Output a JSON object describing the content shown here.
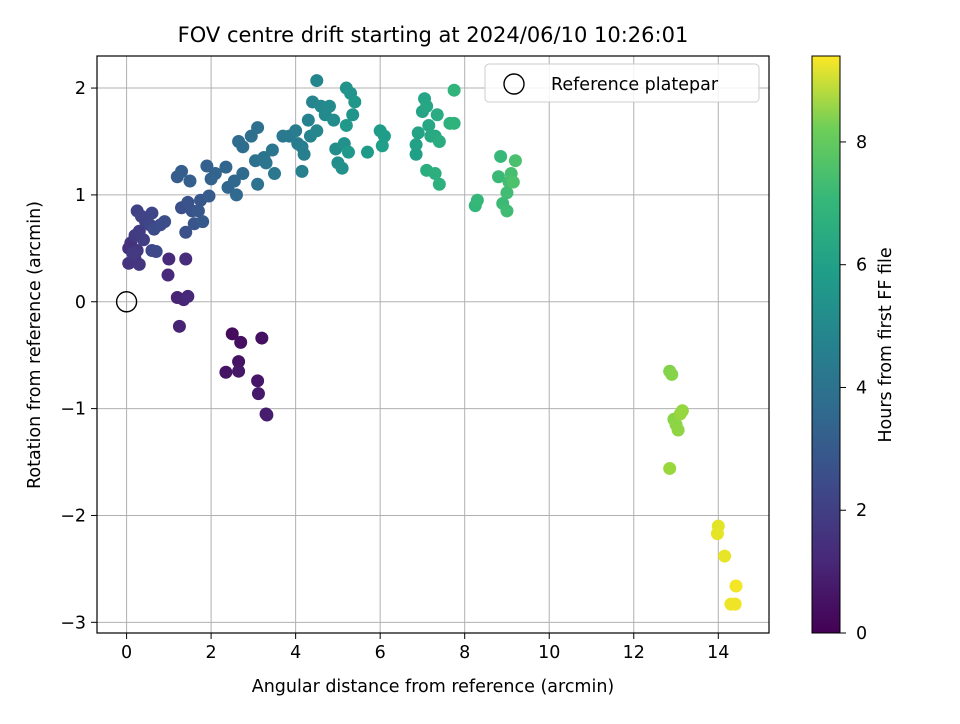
{
  "chart_data": {
    "type": "scatter",
    "title": "FOV centre drift starting at 2024/06/10 10:26:01",
    "xlabel": "Angular distance from reference (arcmin)",
    "ylabel": "Rotation from reference (arcmin)",
    "xlim": [
      -0.7,
      15.2
    ],
    "ylim": [
      -3.1,
      2.3
    ],
    "xticks": [
      0,
      2,
      4,
      6,
      8,
      10,
      12,
      14
    ],
    "yticks": [
      -3,
      -2,
      -1,
      0,
      1,
      2
    ],
    "grid": true,
    "legend": {
      "placement": "top-right",
      "entries": [
        "Reference platepar"
      ]
    },
    "colorbar": {
      "label": "Hours from first FF file",
      "colormap": "viridis",
      "range": [
        0,
        9.4
      ],
      "ticks": [
        0,
        2,
        4,
        6,
        8
      ]
    },
    "reference_point": {
      "x": 0,
      "y": 0,
      "label": "Reference platepar"
    },
    "series": [
      {
        "points": [
          [
            2.5,
            -0.3,
            0.3
          ],
          [
            2.7,
            -0.38,
            0.35
          ],
          [
            3.2,
            -0.34,
            0.4
          ],
          [
            2.65,
            -0.56,
            0.45
          ],
          [
            2.35,
            -0.66,
            0.5
          ],
          [
            2.65,
            -0.65,
            0.55
          ],
          [
            3.1,
            -0.74,
            0.6
          ],
          [
            3.12,
            -0.86,
            0.65
          ],
          [
            3.3,
            -1.05,
            0.7
          ],
          [
            3.32,
            -1.06,
            0.75
          ],
          [
            1.25,
            -0.23,
            0.9
          ],
          [
            1.2,
            0.04,
            0.95
          ],
          [
            1.35,
            0.02,
            1.0
          ],
          [
            1.45,
            0.05,
            1.05
          ],
          [
            0.98,
            0.25,
            1.1
          ],
          [
            1.0,
            0.4,
            1.15
          ],
          [
            1.4,
            0.4,
            1.2
          ],
          [
            0.05,
            0.5,
            1.3
          ],
          [
            0.1,
            0.55,
            1.35
          ],
          [
            0.05,
            0.36,
            1.4
          ],
          [
            0.2,
            0.4,
            1.45
          ],
          [
            0.3,
            0.35,
            1.5
          ],
          [
            0.25,
            0.48,
            1.55
          ],
          [
            0.15,
            0.45,
            1.6
          ],
          [
            0.2,
            0.62,
            1.65
          ],
          [
            0.3,
            0.66,
            1.7
          ],
          [
            0.4,
            0.58,
            1.75
          ],
          [
            0.45,
            0.75,
            1.8
          ],
          [
            0.25,
            0.85,
            1.85
          ],
          [
            0.35,
            0.8,
            1.9
          ],
          [
            0.6,
            0.83,
            1.95
          ],
          [
            0.55,
            0.72,
            2.0
          ],
          [
            0.6,
            0.48,
            2.05
          ],
          [
            0.7,
            0.47,
            2.1
          ],
          [
            0.65,
            0.68,
            2.15
          ],
          [
            0.8,
            0.72,
            2.2
          ],
          [
            0.9,
            0.75,
            2.25
          ],
          [
            1.3,
            0.88,
            2.3
          ],
          [
            1.4,
            0.65,
            2.35
          ],
          [
            1.45,
            0.93,
            2.4
          ],
          [
            1.55,
            0.85,
            2.45
          ],
          [
            1.6,
            0.73,
            2.5
          ],
          [
            1.75,
            0.95,
            2.55
          ],
          [
            1.7,
            0.85,
            2.6
          ],
          [
            1.8,
            0.75,
            2.65
          ],
          [
            1.95,
            0.99,
            2.7
          ],
          [
            1.2,
            1.17,
            2.75
          ],
          [
            1.3,
            1.22,
            2.8
          ],
          [
            1.5,
            1.13,
            2.85
          ],
          [
            1.9,
            1.27,
            2.9
          ],
          [
            2.0,
            1.15,
            2.95
          ],
          [
            2.1,
            1.2,
            3.0
          ],
          [
            2.35,
            1.26,
            3.05
          ],
          [
            2.4,
            1.07,
            3.1
          ],
          [
            2.55,
            1.13,
            3.15
          ],
          [
            2.6,
            1.0,
            3.2
          ],
          [
            2.75,
            1.2,
            3.25
          ],
          [
            2.65,
            1.5,
            3.3
          ],
          [
            2.75,
            1.45,
            3.35
          ],
          [
            2.95,
            1.55,
            3.4
          ],
          [
            3.1,
            1.63,
            3.45
          ],
          [
            3.05,
            1.32,
            3.5
          ],
          [
            3.1,
            1.1,
            3.55
          ],
          [
            3.25,
            1.35,
            3.6
          ],
          [
            3.3,
            1.3,
            3.65
          ],
          [
            3.45,
            1.42,
            3.7
          ],
          [
            3.5,
            1.2,
            3.75
          ],
          [
            3.7,
            1.55,
            3.8
          ],
          [
            3.85,
            1.55,
            3.85
          ],
          [
            4.0,
            1.6,
            3.9
          ],
          [
            4.05,
            1.48,
            3.95
          ],
          [
            4.15,
            1.45,
            4.0
          ],
          [
            4.2,
            1.38,
            4.05
          ],
          [
            4.15,
            1.22,
            4.1
          ],
          [
            4.3,
            1.7,
            4.15
          ],
          [
            4.35,
            1.55,
            4.2
          ],
          [
            4.4,
            1.87,
            4.25
          ],
          [
            4.5,
            2.07,
            4.3
          ],
          [
            4.5,
            1.6,
            4.35
          ],
          [
            4.6,
            1.83,
            4.4
          ],
          [
            4.7,
            1.75,
            4.45
          ],
          [
            4.8,
            1.83,
            4.5
          ],
          [
            4.9,
            1.7,
            4.55
          ],
          [
            4.95,
            1.43,
            4.6
          ],
          [
            5.0,
            1.3,
            4.65
          ],
          [
            5.1,
            1.25,
            4.7
          ],
          [
            5.15,
            1.48,
            4.75
          ],
          [
            5.2,
            2.0,
            4.8
          ],
          [
            5.3,
            1.95,
            4.85
          ],
          [
            5.35,
            1.75,
            4.9
          ],
          [
            5.4,
            1.87,
            4.95
          ],
          [
            5.25,
            1.4,
            5.0
          ],
          [
            5.2,
            1.65,
            5.05
          ],
          [
            5.7,
            1.4,
            5.1
          ],
          [
            6.0,
            1.6,
            5.15
          ],
          [
            6.1,
            1.55,
            5.2
          ],
          [
            6.05,
            1.46,
            5.25
          ],
          [
            6.85,
            1.38,
            5.3
          ],
          [
            6.85,
            1.47,
            5.35
          ],
          [
            6.9,
            1.58,
            5.4
          ],
          [
            7.0,
            1.78,
            5.45
          ],
          [
            7.05,
            1.9,
            5.5
          ],
          [
            7.1,
            1.83,
            5.55
          ],
          [
            7.15,
            1.65,
            5.6
          ],
          [
            7.2,
            1.55,
            5.65
          ],
          [
            7.3,
            1.55,
            5.7
          ],
          [
            7.35,
            1.75,
            5.75
          ],
          [
            7.4,
            1.5,
            5.8
          ],
          [
            7.1,
            1.23,
            5.85
          ],
          [
            7.3,
            1.2,
            5.9
          ],
          [
            7.4,
            1.1,
            5.95
          ],
          [
            7.65,
            1.67,
            6.0
          ],
          [
            7.75,
            1.67,
            6.05
          ],
          [
            7.75,
            1.98,
            6.1
          ],
          [
            8.25,
            0.9,
            6.2
          ],
          [
            8.3,
            0.95,
            6.25
          ],
          [
            8.85,
            1.36,
            6.3
          ],
          [
            8.8,
            1.17,
            6.35
          ],
          [
            8.9,
            0.92,
            6.4
          ],
          [
            9.0,
            0.85,
            6.45
          ],
          [
            9.0,
            1.02,
            6.5
          ],
          [
            9.05,
            1.12,
            6.55
          ],
          [
            9.1,
            1.2,
            6.6
          ],
          [
            9.2,
            1.32,
            6.65
          ],
          [
            9.15,
            1.12,
            6.7
          ],
          [
            12.85,
            -0.65,
            7.6
          ],
          [
            12.9,
            -0.68,
            7.65
          ],
          [
            12.95,
            -1.1,
            7.7
          ],
          [
            13.0,
            -1.15,
            7.75
          ],
          [
            13.05,
            -1.2,
            7.8
          ],
          [
            13.15,
            -1.02,
            7.85
          ],
          [
            13.1,
            -1.05,
            7.9
          ],
          [
            12.85,
            -1.56,
            7.95
          ],
          [
            14.0,
            -2.1,
            9.0
          ],
          [
            13.98,
            -2.17,
            9.05
          ],
          [
            14.15,
            -2.38,
            9.1
          ],
          [
            14.3,
            -2.83,
            9.15
          ],
          [
            14.4,
            -2.83,
            9.2
          ],
          [
            14.42,
            -2.66,
            9.25
          ]
        ],
        "point_format": [
          "x",
          "y",
          "hours"
        ]
      }
    ]
  }
}
